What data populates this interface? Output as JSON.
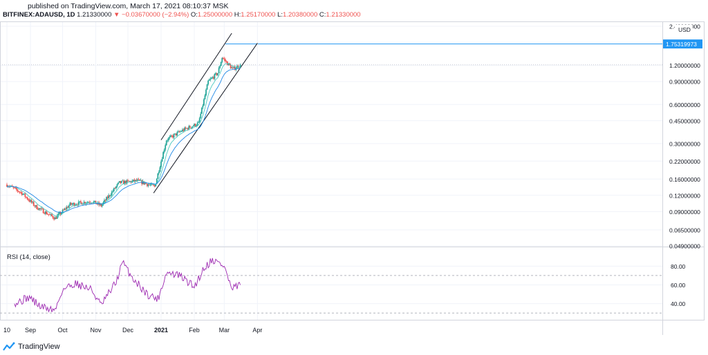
{
  "published": "published on TradingView.com, March 17, 2021 08:10:37 MSK",
  "header": {
    "symbol": "BITFINEX:ADAUSD, 1D",
    "last": "1.21330000",
    "arrow": "▼",
    "change": "−0.03670000 (−2.94%)",
    "o_label": "O:",
    "o": "1.25000000",
    "h_label": "H:",
    "h": "1.25170000",
    "l_label": "L:",
    "l": "1.20380000",
    "c_label": "C:",
    "c": "1.21330000"
  },
  "brand": "TradingView",
  "colors": {
    "up": "#26a69a",
    "down": "#ef5350",
    "ema_fast": "#4cc9c0",
    "ema_slow": "#1e88e5",
    "rsi": "#9c27b0",
    "price_tag": "#2196f3"
  },
  "chart_data": [
    {
      "type": "candlestick",
      "title": "BITFINEX:ADAUSD, 1D",
      "y_scale": "log",
      "y_unit": "USD",
      "ylim": [
        0.049,
        2.4
      ],
      "y_ticks": [
        "2.40000000",
        "1.20000000",
        "0.90000000",
        "0.60000000",
        "0.45000000",
        "0.30000000",
        "0.22000000",
        "0.16000000",
        "0.12000000",
        "0.09000000",
        "0.06500000",
        "0.04900000"
      ],
      "x_ticks": [
        "10",
        "Sep",
        "Oct",
        "Nov",
        "Dec",
        "2021",
        "Feb",
        "Mar",
        "Apr"
      ],
      "current_price_label": "1.75319973",
      "trend_channel": "ascending",
      "close_trajectory": [
        {
          "date": "2020-08-10",
          "close": 0.145
        },
        {
          "date": "2020-08-24",
          "close": 0.125
        },
        {
          "date": "2020-09-06",
          "close": 0.098
        },
        {
          "date": "2020-09-24",
          "close": 0.08
        },
        {
          "date": "2020-10-08",
          "close": 0.102
        },
        {
          "date": "2020-10-28",
          "close": 0.108
        },
        {
          "date": "2020-11-06",
          "close": 0.1
        },
        {
          "date": "2020-11-23",
          "close": 0.15
        },
        {
          "date": "2020-12-10",
          "close": 0.155
        },
        {
          "date": "2020-12-26",
          "close": 0.14
        },
        {
          "date": "2021-01-06",
          "close": 0.32
        },
        {
          "date": "2021-01-21",
          "close": 0.38
        },
        {
          "date": "2021-02-05",
          "close": 0.43
        },
        {
          "date": "2021-02-14",
          "close": 0.9
        },
        {
          "date": "2021-02-23",
          "close": 1.05
        },
        {
          "date": "2021-02-27",
          "close": 1.38
        },
        {
          "date": "2021-03-09",
          "close": 1.12
        },
        {
          "date": "2021-03-16",
          "close": 1.213
        }
      ]
    },
    {
      "type": "line",
      "title": "RSI (14, close)",
      "ylim": [
        25,
        95
      ],
      "y_ticks": [
        "80.00",
        "60.00",
        "40.00"
      ],
      "rsi_trajectory": [
        {
          "date": "2020-08-17",
          "value": 40
        },
        {
          "date": "2020-08-31",
          "value": 47
        },
        {
          "date": "2020-09-10",
          "value": 37
        },
        {
          "date": "2020-09-24",
          "value": 33
        },
        {
          "date": "2020-10-01",
          "value": 55
        },
        {
          "date": "2020-10-13",
          "value": 62
        },
        {
          "date": "2020-10-28",
          "value": 55
        },
        {
          "date": "2020-11-06",
          "value": 38
        },
        {
          "date": "2020-11-20",
          "value": 63
        },
        {
          "date": "2020-11-26",
          "value": 84
        },
        {
          "date": "2020-12-05",
          "value": 68
        },
        {
          "date": "2020-12-19",
          "value": 50
        },
        {
          "date": "2020-12-29",
          "value": 45
        },
        {
          "date": "2021-01-06",
          "value": 73
        },
        {
          "date": "2021-01-18",
          "value": 70
        },
        {
          "date": "2021-02-01",
          "value": 58
        },
        {
          "date": "2021-02-10",
          "value": 78
        },
        {
          "date": "2021-02-18",
          "value": 87
        },
        {
          "date": "2021-03-01",
          "value": 80
        },
        {
          "date": "2021-03-08",
          "value": 55
        },
        {
          "date": "2021-03-16",
          "value": 60
        }
      ]
    }
  ]
}
